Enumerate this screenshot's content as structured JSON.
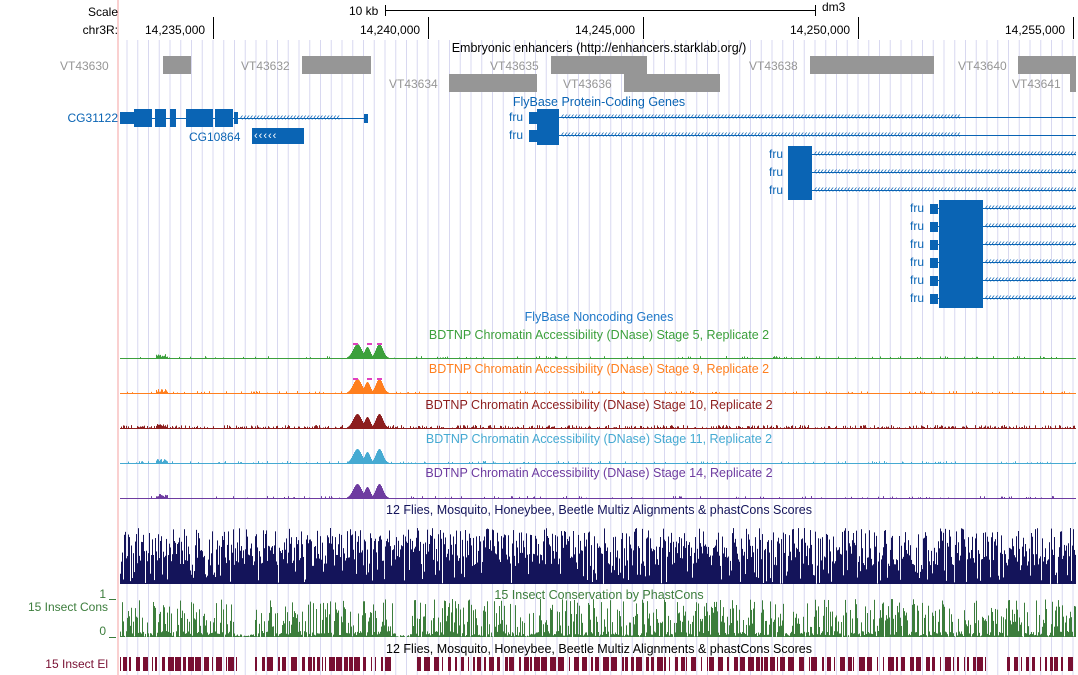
{
  "ruler": {
    "scale_label": "Scale",
    "scale_bar_label": "10 kb",
    "assembly": "dm3",
    "chrom_label": "chr3R:",
    "ticks": [
      "14,235,000",
      "14,240,000",
      "14,245,000",
      "14,250,000",
      "14,255,000"
    ]
  },
  "tracks": {
    "enhancers": {
      "title": "Embryonic enhancers (http://enhancers.starklab.org/)",
      "color": "#969696",
      "items": [
        "VT43630",
        "VT43632",
        "VT43634",
        "VT43635",
        "VT43636",
        "VT43638",
        "VT43640",
        "VT43641"
      ]
    },
    "flybase_coding": {
      "title": "FlyBase Protein-Coding Genes",
      "color": "#0a64b4",
      "genes": [
        "CG31122",
        "CG10864",
        "fru",
        "fru",
        "fru",
        "fru",
        "fru",
        "fru",
        "fru",
        "fru",
        "fru",
        "fru",
        "fru"
      ]
    },
    "flybase_noncoding": {
      "title": "FlyBase Noncoding Genes",
      "color": "#1e78c8"
    },
    "dnase": [
      {
        "title": "BDTNP Chromatin Accessibility (DNase) Stage 5, Replicate 2",
        "color": "#3ca03c"
      },
      {
        "title": "BDTNP Chromatin Accessibility (DNase) Stage 9, Replicate 2",
        "color": "#ff7f1e"
      },
      {
        "title": "BDTNP Chromatin Accessibility (DNase) Stage 10, Replicate 2",
        "color": "#8c1e1e"
      },
      {
        "title": "BDTNP Chromatin Accessibility (DNase) Stage 11, Replicate 2",
        "color": "#46aad2"
      },
      {
        "title": "BDTNP Chromatin Accessibility (DNase) Stage 14, Replicate 2",
        "color": "#6e3ca0"
      }
    ],
    "multiz": {
      "title": "12 Flies, Mosquito, Honeybee, Beetle Multiz Alignments & phastCons Scores",
      "color": "#14145a"
    },
    "phastcons": {
      "title": "15 Insect Conservation by PhastCons",
      "side_label": "15 Insect Cons",
      "y_max": "1",
      "y_min": "0",
      "color": "#3c7d3c"
    },
    "elements": {
      "title": "12 Flies, Mosquito, Honeybee, Beetle Multiz Alignments & phastCons Scores",
      "side_label": "15 Insect El",
      "color": "#780f32"
    }
  }
}
